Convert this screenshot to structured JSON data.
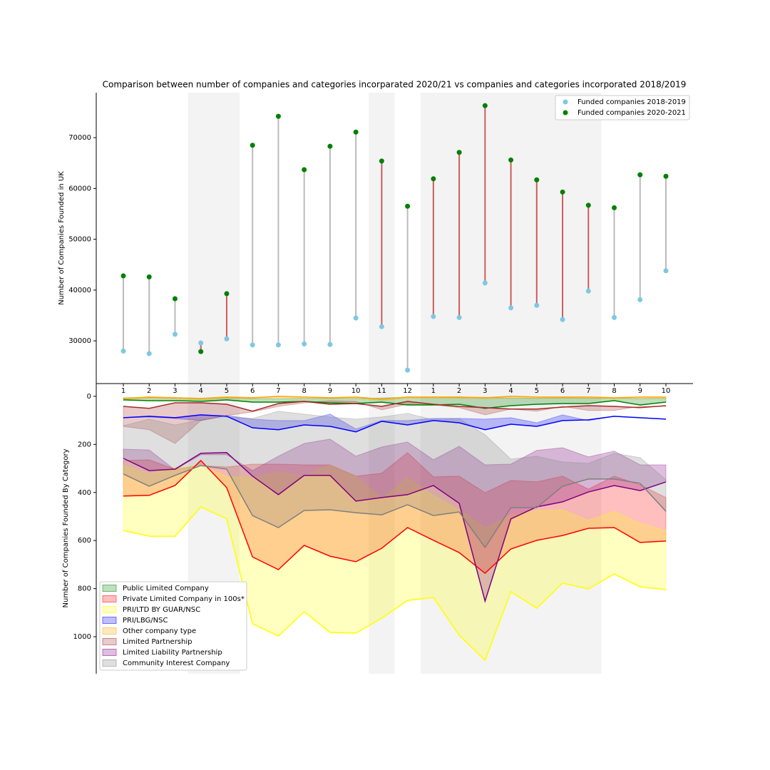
{
  "chart_data": [
    {
      "type": "dumbbell",
      "title": "Comparison between number of companies and categories incorparated 2020/21 vs companies and categories incorporated 2018/2019",
      "ylabel": "Number of Companies Founded in UK",
      "categories": [
        "1",
        "2",
        "3",
        "4",
        "5",
        "6",
        "7",
        "8",
        "9",
        "10",
        "11",
        "12",
        "1",
        "2",
        "3",
        "4",
        "5",
        "6",
        "7",
        "8",
        "9",
        "10"
      ],
      "series": [
        {
          "name": "Funded companies 2018-2019",
          "color": "#7ec8e3",
          "values": [
            28000,
            27500,
            31300,
            29600,
            30400,
            29200,
            29200,
            29400,
            29300,
            34500,
            32800,
            24250,
            34800,
            34600,
            41400,
            36500,
            37000,
            34200,
            39800,
            34600,
            38100,
            43800
          ]
        },
        {
          "name": "Funded companies 2020-2021",
          "color": "green",
          "values": [
            42800,
            42600,
            38300,
            27900,
            39300,
            68500,
            74200,
            63700,
            68300,
            71100,
            65400,
            56500,
            61900,
            67100,
            76300,
            65600,
            61700,
            59300,
            56700,
            56200,
            62700,
            62400
          ]
        }
      ],
      "connector_color": "#bbbbbb",
      "highlight_color": "indianred",
      "shaded": [
        false,
        false,
        false,
        true,
        true,
        false,
        false,
        false,
        false,
        false,
        true,
        false,
        true,
        true,
        true,
        true,
        true,
        true,
        true,
        false,
        false,
        false
      ],
      "shade_color": "#f3f3f3",
      "ylim": [
        21600,
        78850
      ],
      "yticks": [
        30000,
        40000,
        50000,
        60000,
        70000
      ],
      "legend": "upper right"
    },
    {
      "type": "fill_between",
      "ylabel": "Number of Companies Founded By Category",
      "series": [
        {
          "name": "Public Limited Company",
          "color": "green",
          "values": [
            15,
            18,
            18,
            21,
            15,
            24,
            24,
            21,
            27,
            30,
            24,
            36,
            36,
            33,
            50,
            39,
            33,
            30,
            30,
            18,
            36,
            24
          ],
          "fill_values": [
            6,
            5,
            6,
            8,
            6,
            10,
            10,
            9,
            8,
            9,
            7,
            3,
            3,
            5,
            4,
            8,
            8,
            6,
            8,
            6,
            10,
            8
          ]
        },
        {
          "name": "Private Limited Company in 100s*",
          "color": "red",
          "values": [
            415,
            412,
            371,
            267,
            380,
            668,
            721,
            620,
            665,
            688,
            632,
            546,
            599,
            650,
            736,
            635,
            599,
            579,
            549,
            546,
            608,
            602
          ],
          "fill_values": [
            267,
            264,
            303,
            288,
            294,
            282,
            282,
            285,
            285,
            332,
            320,
            234,
            335,
            332,
            401,
            350,
            356,
            332,
            386,
            332,
            368,
            421
          ]
        },
        {
          "name": "PRI/LTD BY GUAR/NSC",
          "color": "yellow",
          "values": [
            558,
            582,
            582,
            460,
            510,
            946,
            997,
            896,
            982,
            985,
            923,
            849,
            837,
            994,
            1098,
            813,
            881,
            777,
            801,
            739,
            792,
            804
          ],
          "fill_values": [
            288,
            323,
            294,
            288,
            332,
            338,
            315,
            332,
            285,
            332,
            424,
            338,
            412,
            472,
            546,
            493,
            475,
            472,
            516,
            478,
            528,
            558
          ]
        },
        {
          "name": "PRI/LBG/NSC",
          "color": "blue",
          "values": [
            89,
            83,
            89,
            77,
            83,
            131,
            139,
            119,
            125,
            148,
            104,
            119,
            101,
            110,
            139,
            116,
            125,
            101,
            98,
            83,
            89,
            95
          ],
          "fill_values": [
            89,
            86,
            92,
            101,
            80,
            95,
            101,
            101,
            74,
            136,
            101,
            101,
            92,
            92,
            95,
            89,
            110,
            77,
            101,
            83,
            89,
            95
          ]
        },
        {
          "name": "Other company type",
          "color": "orange",
          "values": [
            9,
            3,
            6,
            9,
            3,
            6,
            0,
            3,
            6,
            3,
            12,
            3,
            3,
            3,
            6,
            0,
            3,
            3,
            3,
            6,
            3,
            3
          ],
          "fill_values": [
            14,
            8,
            10,
            14,
            8,
            10,
            6,
            8,
            10,
            8,
            16,
            8,
            8,
            8,
            10,
            6,
            8,
            8,
            8,
            10,
            8,
            8
          ]
        },
        {
          "name": "Limited Partnership",
          "color": "brown",
          "values": [
            42,
            50,
            27,
            27,
            33,
            62,
            30,
            21,
            33,
            30,
            42,
            21,
            33,
            42,
            47,
            53,
            53,
            45,
            39,
            42,
            47,
            39
          ],
          "fill_values": [
            125,
            139,
            196,
            101,
            80,
            65,
            42,
            27,
            18,
            21,
            56,
            33,
            36,
            47,
            77,
            53,
            62,
            42,
            59,
            59,
            42,
            42
          ]
        },
        {
          "name": "Limited Liability Partnership",
          "color": "purple",
          "values": [
            258,
            309,
            303,
            237,
            234,
            332,
            409,
            329,
            329,
            436,
            421,
            409,
            371,
            445,
            852,
            510,
            460,
            439,
            398,
            371,
            392,
            356
          ],
          "fill_values": [
            220,
            223,
            306,
            243,
            243,
            309,
            249,
            196,
            178,
            249,
            211,
            190,
            264,
            208,
            285,
            282,
            225,
            214,
            252,
            228,
            285,
            285
          ]
        },
        {
          "name": "Community Interest Company",
          "color": "grey",
          "values": [
            323,
            374,
            329,
            288,
            303,
            496,
            546,
            475,
            472,
            484,
            493,
            451,
            496,
            481,
            629,
            463,
            463,
            374,
            344,
            344,
            362,
            478
          ],
          "fill_values": [
            122,
            95,
            119,
            98,
            86,
            92,
            62,
            74,
            86,
            95,
            86,
            71,
            98,
            92,
            160,
            261,
            249,
            273,
            279,
            237,
            255,
            347
          ]
        }
      ],
      "fill_opacity": 0.25,
      "shaded": [
        false,
        false,
        false,
        true,
        true,
        false,
        false,
        false,
        false,
        false,
        true,
        false,
        true,
        true,
        true,
        true,
        true,
        true,
        true,
        false,
        false,
        false
      ],
      "shade_color": "#f3f3f3",
      "ylim": [
        -53,
        1154
      ],
      "inverted": true,
      "yticks": [
        0,
        200,
        400,
        600,
        800,
        1000
      ],
      "legend": "lower left"
    }
  ]
}
